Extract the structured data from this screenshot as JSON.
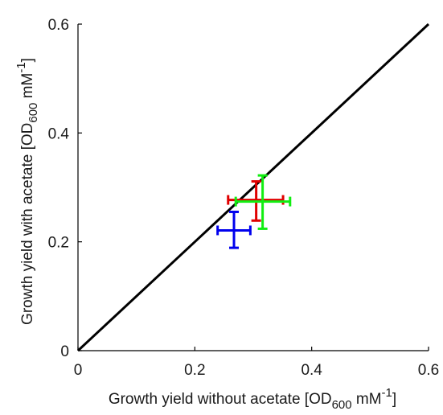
{
  "chart_data": {
    "type": "scatter",
    "title": "",
    "xlabel": "Growth yield without acetate [OD600 mM-1]",
    "ylabel": "Growth yield with acetate [OD600 mM-1]",
    "xlabel_parts": {
      "main": "Growth yield without acetate [OD",
      "sub": "600",
      "mid": " mM",
      "sup": "-1",
      "end": "]"
    },
    "ylabel_parts": {
      "main": "Growth yield with acetate [OD",
      "sub": "600",
      "mid": " mM",
      "sup": "-1",
      "end": "]"
    },
    "xlim": [
      0,
      0.6
    ],
    "ylim": [
      0,
      0.6
    ],
    "x_ticks": [
      0,
      0.2,
      0.4,
      0.6
    ],
    "y_ticks": [
      0,
      0.2,
      0.4,
      0.6
    ],
    "x_tick_labels": [
      "0",
      "0.2",
      "0.4",
      "0.6"
    ],
    "y_tick_labels": [
      "0",
      "0.2",
      "0.4",
      "0.6"
    ],
    "grid": false,
    "legend": "none",
    "reference_line": {
      "from": [
        0,
        0
      ],
      "to": [
        0.6,
        0.6
      ],
      "color": "#000000"
    },
    "series": [
      {
        "x": 0.267,
        "y": 0.221,
        "x_err": [
          0.239,
          0.295
        ],
        "y_err": [
          0.189,
          0.255
        ],
        "color": "#0000ee"
      },
      {
        "x": 0.305,
        "y": 0.277,
        "x_err": [
          0.257,
          0.351
        ],
        "y_err": [
          0.239,
          0.311
        ],
        "color": "#e00000"
      },
      {
        "x": 0.316,
        "y": 0.274,
        "x_err": [
          0.27,
          0.363
        ],
        "y_err": [
          0.224,
          0.322
        ],
        "color": "#11ee11"
      }
    ]
  }
}
